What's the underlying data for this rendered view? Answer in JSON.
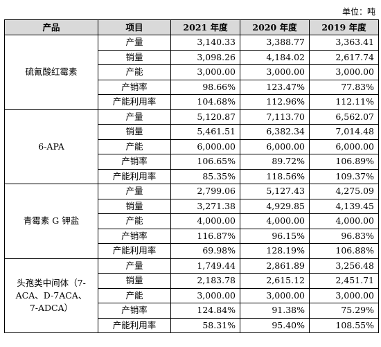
{
  "unit_label": "单位：吨",
  "headers": [
    "产品",
    "项目",
    "2021 年度",
    "2020 年度",
    "2019 年度"
  ],
  "groups": [
    {
      "product": "硫氰酸红霉素",
      "rows": [
        {
          "item": "产量",
          "values": [
            "3,140.33",
            "3,388.77",
            "3,363.41"
          ]
        },
        {
          "item": "销量",
          "values": [
            "3,098.26",
            "4,184.02",
            "2,617.74"
          ]
        },
        {
          "item": "产能",
          "values": [
            "3,000.00",
            "3,000.00",
            "3,000.00"
          ]
        },
        {
          "item": "产销率",
          "values": [
            "98.66%",
            "123.47%",
            "77.83%"
          ]
        },
        {
          "item": "产能利用率",
          "values": [
            "104.68%",
            "112.96%",
            "112.11%"
          ]
        }
      ]
    },
    {
      "product": "6-APA",
      "rows": [
        {
          "item": "产量",
          "values": [
            "5,120.87",
            "7,113.70",
            "6,562.07"
          ]
        },
        {
          "item": "销量",
          "values": [
            "5,461.51",
            "6,382.34",
            "7,014.48"
          ]
        },
        {
          "item": "产能",
          "values": [
            "6,000.00",
            "6,000.00",
            "6,000.00"
          ]
        },
        {
          "item": "产销率",
          "values": [
            "106.65%",
            "89.72%",
            "106.89%"
          ]
        },
        {
          "item": "产能利用率",
          "values": [
            "85.35%",
            "118.56%",
            "109.37%"
          ]
        }
      ]
    },
    {
      "product": "青霉素 G 钾盐",
      "rows": [
        {
          "item": "产量",
          "values": [
            "2,799.06",
            "5,127.43",
            "4,275.09"
          ]
        },
        {
          "item": "销量",
          "values": [
            "3,271.38",
            "4,929.85",
            "4,139.45"
          ]
        },
        {
          "item": "产能",
          "values": [
            "4,000.00",
            "4,000.00",
            "4,000.00"
          ]
        },
        {
          "item": "产销率",
          "values": [
            "116.87%",
            "96.15%",
            "96.83%"
          ]
        },
        {
          "item": "产能利用率",
          "values": [
            "69.98%",
            "128.19%",
            "106.88%"
          ]
        }
      ]
    },
    {
      "product": "头孢类中间体（7-ACA、D-7ACA、7-ADCA）",
      "rows": [
        {
          "item": "产量",
          "values": [
            "1,749.44",
            "2,861.89",
            "3,256.48"
          ]
        },
        {
          "item": "销量",
          "values": [
            "2,183.78",
            "2,615.12",
            "2,451.71"
          ]
        },
        {
          "item": "产能",
          "values": [
            "3,000.00",
            "3,000.00",
            "3,000.00"
          ]
        },
        {
          "item": "产销率",
          "values": [
            "124.84%",
            "91.38%",
            "75.29%"
          ]
        },
        {
          "item": "产能利用率",
          "values": [
            "58.31%",
            "95.40%",
            "108.55%"
          ]
        }
      ]
    }
  ]
}
